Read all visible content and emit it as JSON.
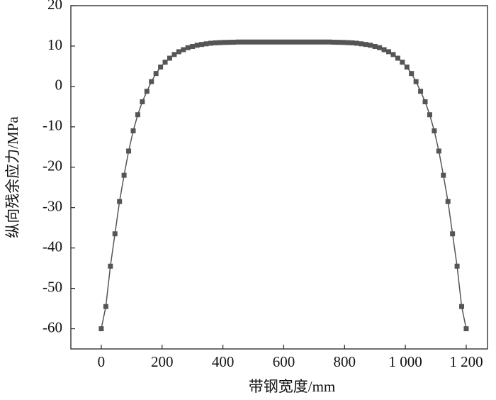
{
  "chart_data": {
    "type": "line",
    "x_label": "带钢宽度/mm",
    "y_label": "纵向残余应力/MPa",
    "xlim": [
      -100,
      1270
    ],
    "ylim": [
      -65,
      20
    ],
    "xticks": [
      0,
      200,
      400,
      600,
      800,
      {
        "value": 1000,
        "label": "1 000"
      },
      {
        "value": 1200,
        "label": "1 200"
      }
    ],
    "yticks": [
      -60,
      -50,
      -40,
      -30,
      -20,
      -10,
      0,
      10,
      20
    ],
    "x": [
      0,
      15,
      30,
      45,
      60,
      75,
      90,
      105,
      120,
      135,
      150,
      165,
      180,
      195,
      210,
      225,
      240,
      255,
      270,
      285,
      300,
      315,
      330,
      345,
      360,
      375,
      390,
      405,
      420,
      435,
      450,
      465,
      480,
      495,
      510,
      525,
      540,
      555,
      570,
      585,
      600,
      615,
      630,
      645,
      660,
      675,
      690,
      705,
      720,
      735,
      750,
      765,
      780,
      795,
      810,
      825,
      840,
      855,
      870,
      885,
      900,
      915,
      930,
      945,
      960,
      975,
      990,
      1005,
      1020,
      1035,
      1050,
      1065,
      1080,
      1095,
      1110,
      1125,
      1140,
      1155,
      1170,
      1185,
      1200
    ],
    "series": [
      {
        "color": "#555555",
        "values": [
          -60,
          -54.5,
          -44.5,
          -36.5,
          -28.5,
          -22,
          -16,
          -11,
          -7,
          -3.8,
          -1.2,
          1.2,
          3.2,
          4.8,
          6,
          7,
          7.9,
          8.6,
          9.1,
          9.6,
          9.9,
          10.2,
          10.4,
          10.55,
          10.7,
          10.8,
          10.85,
          10.9,
          10.93,
          10.95,
          11,
          11,
          11,
          11,
          11,
          11,
          11,
          11,
          11,
          11,
          11,
          11,
          11,
          11,
          11,
          11,
          11,
          11,
          11,
          11,
          11,
          10.95,
          10.93,
          10.9,
          10.85,
          10.8,
          10.7,
          10.55,
          10.4,
          10.2,
          9.9,
          9.6,
          9.1,
          8.6,
          7.9,
          7,
          6,
          4.8,
          3.2,
          1.2,
          -1.2,
          -3.8,
          -7,
          -11,
          -16,
          -22,
          -28.5,
          -36.5,
          -44.5,
          -54.5,
          -60
        ]
      }
    ]
  }
}
